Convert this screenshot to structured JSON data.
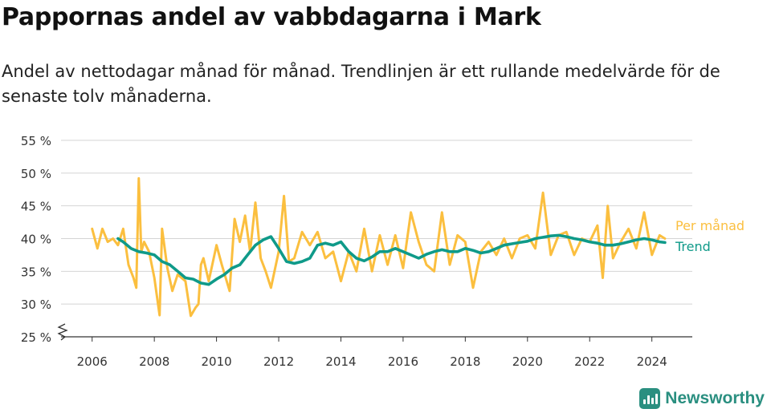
{
  "title": "Pappornas andel av vabbdagarna i Mark",
  "subtitle": "Andel av nettodagar månad för månad. Trendlinjen är ett rullande medelvärde för de senaste tolv månaderna.",
  "brand": "Newsworthy",
  "colors": {
    "monthly": "#fbbf3f",
    "trend": "#0f9a89",
    "grid": "#d4d4d4",
    "axis": "#333333",
    "brand": "#2a8f80"
  },
  "chart_data": {
    "type": "line",
    "title": "Pappornas andel av vabbdagarna i Mark",
    "subtitle": "Andel av nettodagar månad för månad. Trendlinjen är ett rullande medelvärde för de senaste tolv månaderna.",
    "xlabel": "",
    "ylabel": "",
    "ylim": [
      25,
      55
    ],
    "y_ticks": [
      25,
      30,
      35,
      40,
      45,
      50,
      55
    ],
    "y_tick_labels": [
      "25 %",
      "30 %",
      "35 %",
      "40 %",
      "45 %",
      "50 %",
      "55 %"
    ],
    "x_ticks": [
      2006,
      2008,
      2010,
      2012,
      2014,
      2016,
      2018,
      2020,
      2022,
      2024
    ],
    "x_tick_labels": [
      "2006",
      "2008",
      "2010",
      "2012",
      "2014",
      "2016",
      "2018",
      "2020",
      "2022",
      "2024"
    ],
    "xlim": [
      2005.0,
      2025.3
    ],
    "y_axis_break": true,
    "grid": true,
    "legend": "right end labels",
    "series": [
      {
        "name": "Per månad",
        "color": "#fbbf3f",
        "x": [
          2006.0,
          2006.17,
          2006.33,
          2006.5,
          2006.67,
          2006.83,
          2007.0,
          2007.17,
          2007.33,
          2007.42,
          2007.5,
          2007.58,
          2007.67,
          2007.83,
          2008.0,
          2008.17,
          2008.25,
          2008.42,
          2008.58,
          2008.75,
          2009.0,
          2009.17,
          2009.33,
          2009.42,
          2009.5,
          2009.58,
          2009.75,
          2010.0,
          2010.17,
          2010.42,
          2010.58,
          2010.75,
          2010.92,
          2011.08,
          2011.25,
          2011.42,
          2011.58,
          2011.75,
          2012.0,
          2012.17,
          2012.33,
          2012.5,
          2012.75,
          2013.0,
          2013.25,
          2013.5,
          2013.75,
          2014.0,
          2014.25,
          2014.5,
          2014.75,
          2015.0,
          2015.25,
          2015.5,
          2015.75,
          2016.0,
          2016.25,
          2016.5,
          2016.75,
          2017.0,
          2017.25,
          2017.5,
          2017.75,
          2018.0,
          2018.25,
          2018.5,
          2018.75,
          2019.0,
          2019.25,
          2019.5,
          2019.75,
          2020.0,
          2020.25,
          2020.5,
          2020.75,
          2021.0,
          2021.25,
          2021.5,
          2021.75,
          2022.0,
          2022.25,
          2022.42,
          2022.58,
          2022.75,
          2023.0,
          2023.25,
          2023.5,
          2023.75,
          2024.0,
          2024.25,
          2024.42
        ],
        "values": [
          41.5,
          38.5,
          41.5,
          39.5,
          40.0,
          39.0,
          41.5,
          36.0,
          34.0,
          32.5,
          49.2,
          38.0,
          39.5,
          38.0,
          34.0,
          28.3,
          41.5,
          35.5,
          32.0,
          34.5,
          33.5,
          28.2,
          29.5,
          30.0,
          36.0,
          37.0,
          33.5,
          39.0,
          36.0,
          32.0,
          43.0,
          39.5,
          43.5,
          38.0,
          45.5,
          37.0,
          35.0,
          32.5,
          38.0,
          46.5,
          36.5,
          37.0,
          41.0,
          39.0,
          41.0,
          37.0,
          38.0,
          33.5,
          38.0,
          35.0,
          41.5,
          35.0,
          40.5,
          36.0,
          40.5,
          35.5,
          44.0,
          39.5,
          36.0,
          35.0,
          44.0,
          36.0,
          40.5,
          39.5,
          32.5,
          38.0,
          39.5,
          37.5,
          40.0,
          37.0,
          40.0,
          40.5,
          38.5,
          47.0,
          37.5,
          40.5,
          41.0,
          37.5,
          40.0,
          39.5,
          42.0,
          34.0,
          45.0,
          37.0,
          39.5,
          41.5,
          38.5,
          44.0,
          37.5,
          40.5,
          40.0
        ]
      },
      {
        "name": "Trend",
        "color": "#0f9a89",
        "x": [
          2006.83,
          2007.0,
          2007.25,
          2007.5,
          2007.75,
          2008.0,
          2008.25,
          2008.5,
          2008.75,
          2009.0,
          2009.25,
          2009.5,
          2009.75,
          2010.0,
          2010.25,
          2010.5,
          2010.75,
          2011.0,
          2011.25,
          2011.5,
          2011.75,
          2012.0,
          2012.25,
          2012.5,
          2012.75,
          2013.0,
          2013.25,
          2013.5,
          2013.75,
          2014.0,
          2014.25,
          2014.5,
          2014.75,
          2015.0,
          2015.25,
          2015.5,
          2015.75,
          2016.0,
          2016.25,
          2016.5,
          2016.75,
          2017.0,
          2017.25,
          2017.5,
          2017.75,
          2018.0,
          2018.25,
          2018.5,
          2018.75,
          2019.0,
          2019.25,
          2019.5,
          2019.75,
          2020.0,
          2020.25,
          2020.5,
          2020.75,
          2021.0,
          2021.25,
          2021.5,
          2021.75,
          2022.0,
          2022.25,
          2022.5,
          2022.75,
          2023.0,
          2023.25,
          2023.5,
          2023.75,
          2024.0,
          2024.25,
          2024.42
        ],
        "values": [
          40.0,
          39.5,
          38.5,
          38.0,
          37.8,
          37.5,
          36.5,
          36.0,
          35.0,
          34.0,
          33.8,
          33.2,
          33.0,
          33.8,
          34.5,
          35.5,
          36.0,
          37.5,
          39.0,
          39.8,
          40.3,
          38.5,
          36.5,
          36.2,
          36.5,
          37.0,
          39.0,
          39.3,
          39.0,
          39.5,
          38.0,
          37.0,
          36.6,
          37.2,
          38.0,
          38.0,
          38.5,
          38.0,
          37.5,
          37.0,
          37.6,
          38.0,
          38.3,
          38.0,
          38.0,
          38.5,
          38.2,
          37.8,
          38.0,
          38.5,
          39.0,
          39.2,
          39.4,
          39.6,
          40.0,
          40.2,
          40.4,
          40.5,
          40.3,
          40.0,
          39.8,
          39.5,
          39.3,
          39.0,
          39.0,
          39.2,
          39.5,
          39.8,
          40.0,
          39.8,
          39.5,
          39.4
        ]
      }
    ]
  }
}
